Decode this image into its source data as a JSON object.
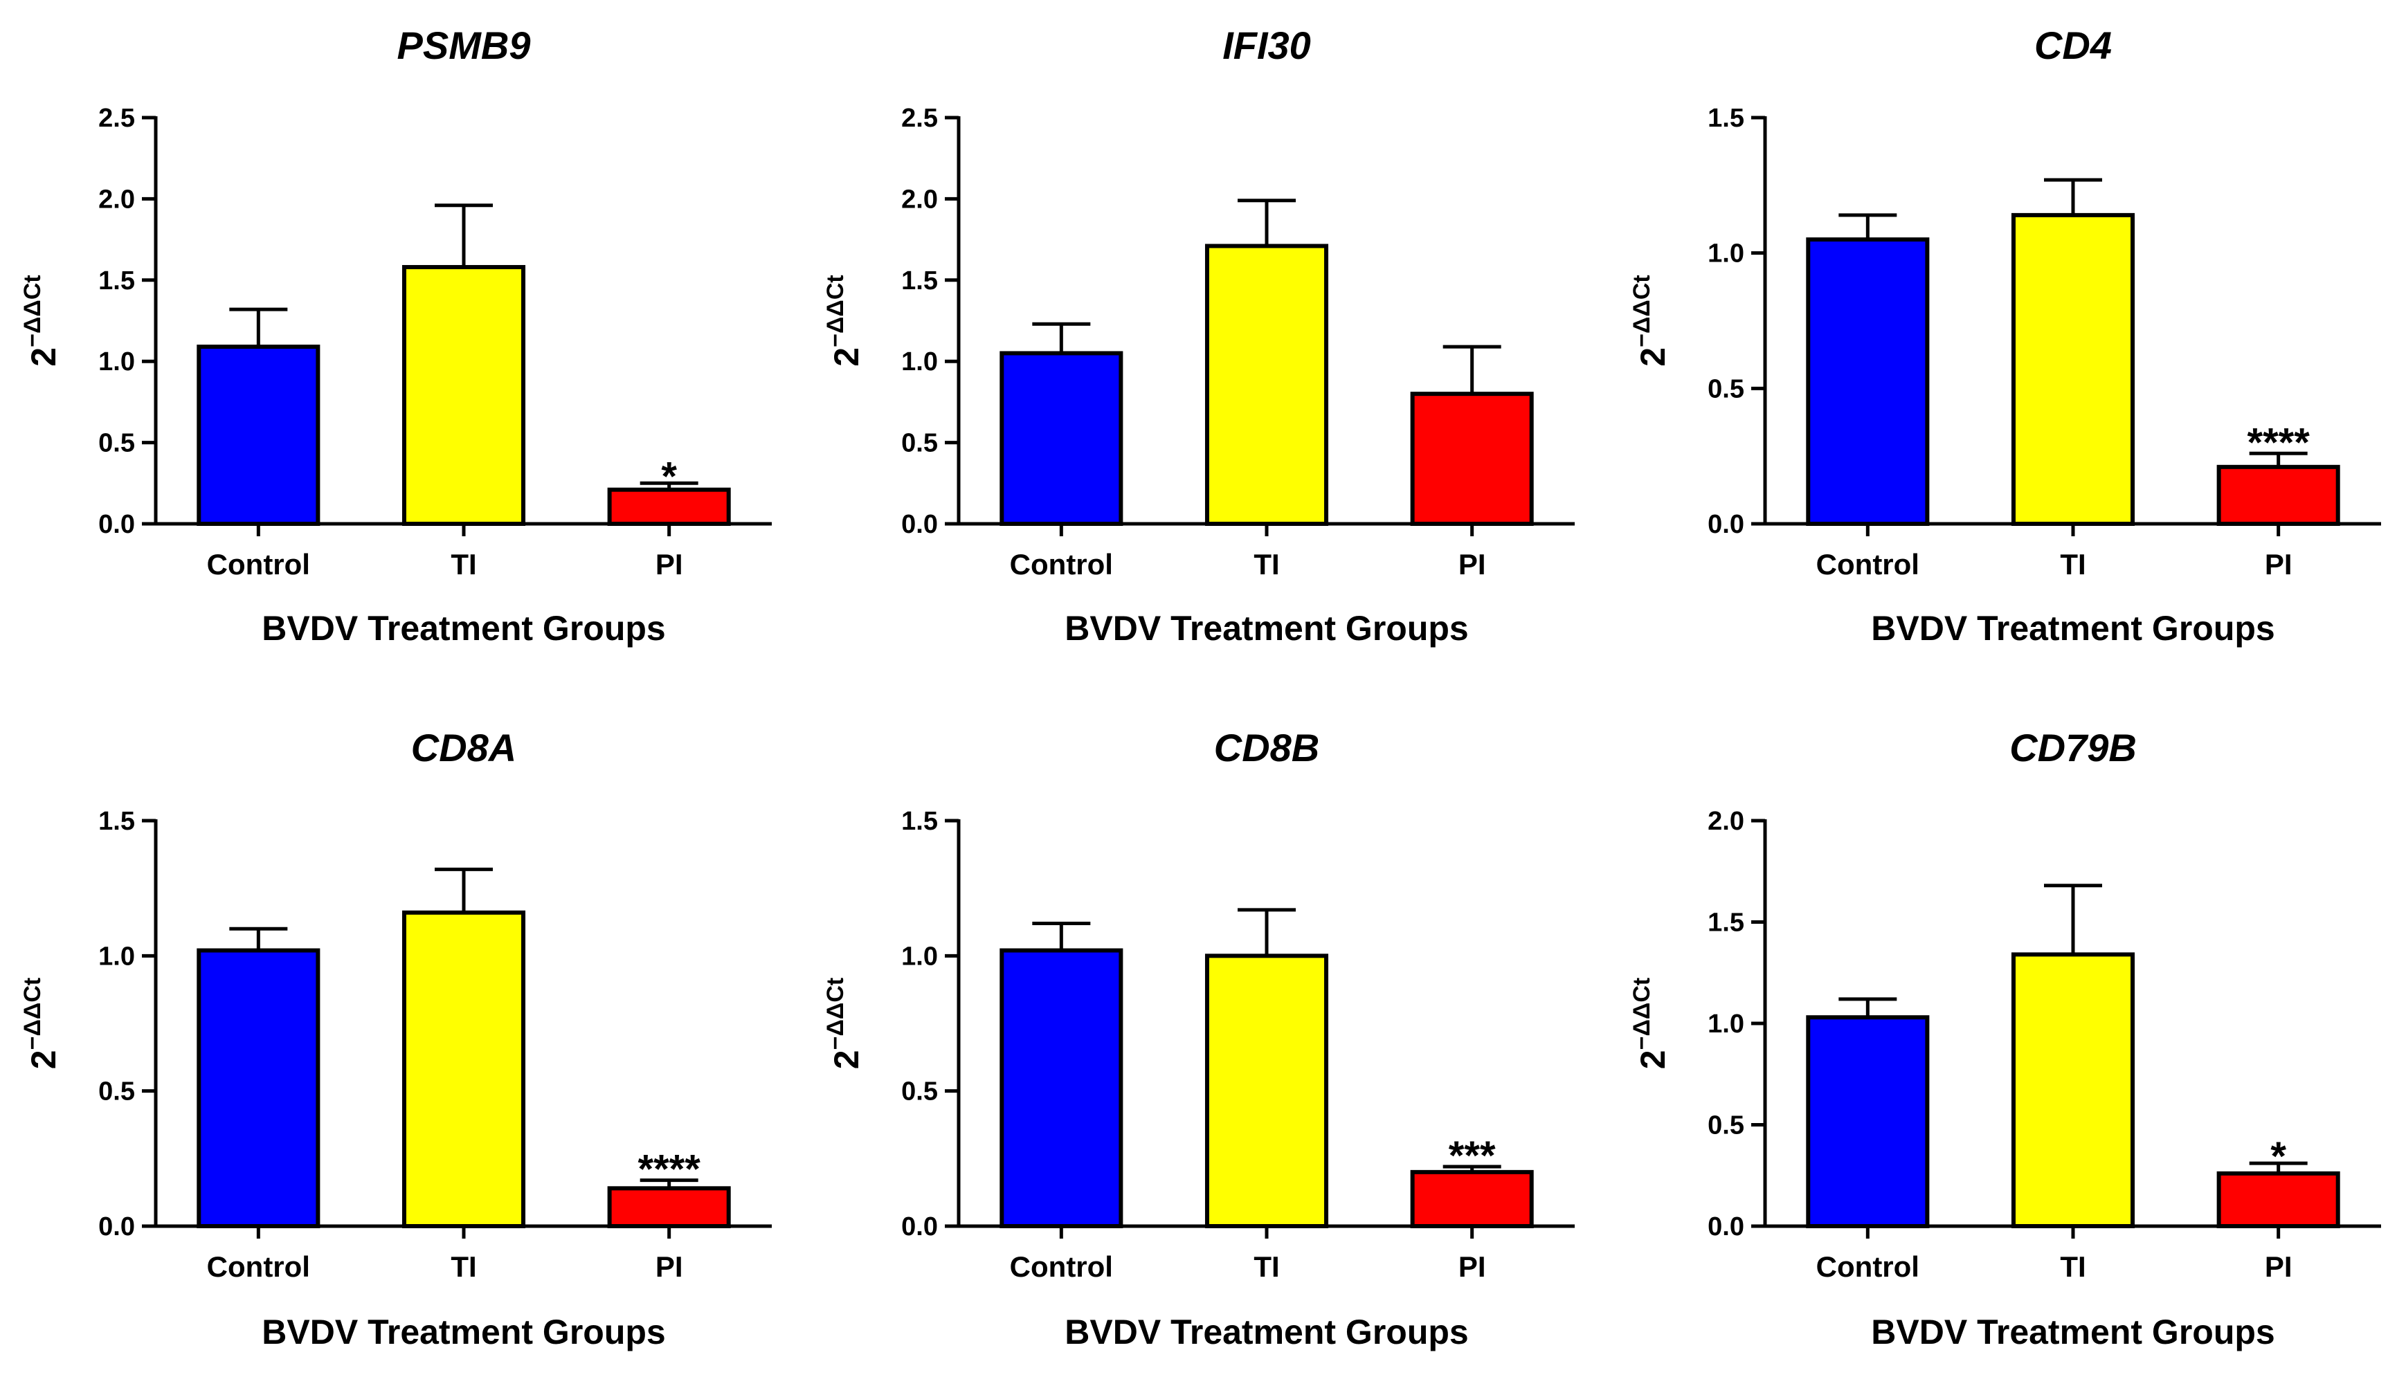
{
  "figure": {
    "panels": 6,
    "layout": "2 rows x 3 columns"
  },
  "colors": {
    "Control": "#0000ff",
    "TI": "#ffff00",
    "PI": "#ff0000",
    "axis": "#000000"
  },
  "chart_data": [
    {
      "type": "bar",
      "title": "PSMB9",
      "categories": [
        "Control",
        "TI",
        "PI"
      ],
      "values": [
        1.09,
        1.58,
        0.21
      ],
      "errors": [
        0.23,
        0.38,
        0.04
      ],
      "significance": [
        "",
        "",
        "*"
      ],
      "xlabel": "BVDV Treatment Groups",
      "ylabel": {
        "base": "2",
        "sup": "−ΔΔCt"
      },
      "ylim": [
        0,
        2.5
      ],
      "yticks": [
        "0.0",
        "0.5",
        "1.0",
        "1.5",
        "2.0",
        "2.5"
      ]
    },
    {
      "type": "bar",
      "title": "IFI30",
      "categories": [
        "Control",
        "TI",
        "PI"
      ],
      "values": [
        1.05,
        1.71,
        0.8
      ],
      "errors": [
        0.18,
        0.28,
        0.29
      ],
      "significance": [
        "",
        "",
        ""
      ],
      "xlabel": "BVDV Treatment Groups",
      "ylabel": {
        "base": "2",
        "sup": "−ΔΔCt"
      },
      "ylim": [
        0,
        2.5
      ],
      "yticks": [
        "0.0",
        "0.5",
        "1.0",
        "1.5",
        "2.0",
        "2.5"
      ]
    },
    {
      "type": "bar",
      "title": "CD4",
      "categories": [
        "Control",
        "TI",
        "PI"
      ],
      "values": [
        1.05,
        1.14,
        0.21
      ],
      "errors": [
        0.09,
        0.13,
        0.05
      ],
      "significance": [
        "",
        "",
        "****"
      ],
      "xlabel": "BVDV Treatment Groups",
      "ylabel": {
        "base": "2",
        "sup": "−ΔΔCt"
      },
      "ylim": [
        0,
        1.5
      ],
      "yticks": [
        "0.0",
        "0.5",
        "1.0",
        "1.5"
      ]
    },
    {
      "type": "bar",
      "title": "CD8A",
      "categories": [
        "Control",
        "TI",
        "PI"
      ],
      "values": [
        1.02,
        1.16,
        0.14
      ],
      "errors": [
        0.08,
        0.16,
        0.03
      ],
      "significance": [
        "",
        "",
        "****"
      ],
      "xlabel": "BVDV Treatment Groups",
      "ylabel": {
        "base": "2",
        "sup": "−ΔΔCt"
      },
      "ylim": [
        0,
        1.5
      ],
      "yticks": [
        "0.0",
        "0.5",
        "1.0",
        "1.5"
      ]
    },
    {
      "type": "bar",
      "title": "CD8B",
      "categories": [
        "Control",
        "TI",
        "PI"
      ],
      "values": [
        1.02,
        1.0,
        0.2
      ],
      "errors": [
        0.1,
        0.17,
        0.02
      ],
      "significance": [
        "",
        "",
        "***"
      ],
      "xlabel": "BVDV Treatment Groups",
      "ylabel": {
        "base": "2",
        "sup": "−ΔΔCt"
      },
      "ylim": [
        0,
        1.5
      ],
      "yticks": [
        "0.0",
        "0.5",
        "1.0",
        "1.5"
      ]
    },
    {
      "type": "bar",
      "title": "CD79B",
      "categories": [
        "Control",
        "TI",
        "PI"
      ],
      "values": [
        1.03,
        1.34,
        0.26
      ],
      "errors": [
        0.09,
        0.34,
        0.05
      ],
      "significance": [
        "",
        "",
        "*"
      ],
      "xlabel": "BVDV Treatment Groups",
      "ylabel": {
        "base": "2",
        "sup": "−ΔΔCt"
      },
      "ylim": [
        0,
        2.0
      ],
      "yticks": [
        "0.0",
        "0.5",
        "1.0",
        "1.5",
        "2.0"
      ]
    }
  ]
}
